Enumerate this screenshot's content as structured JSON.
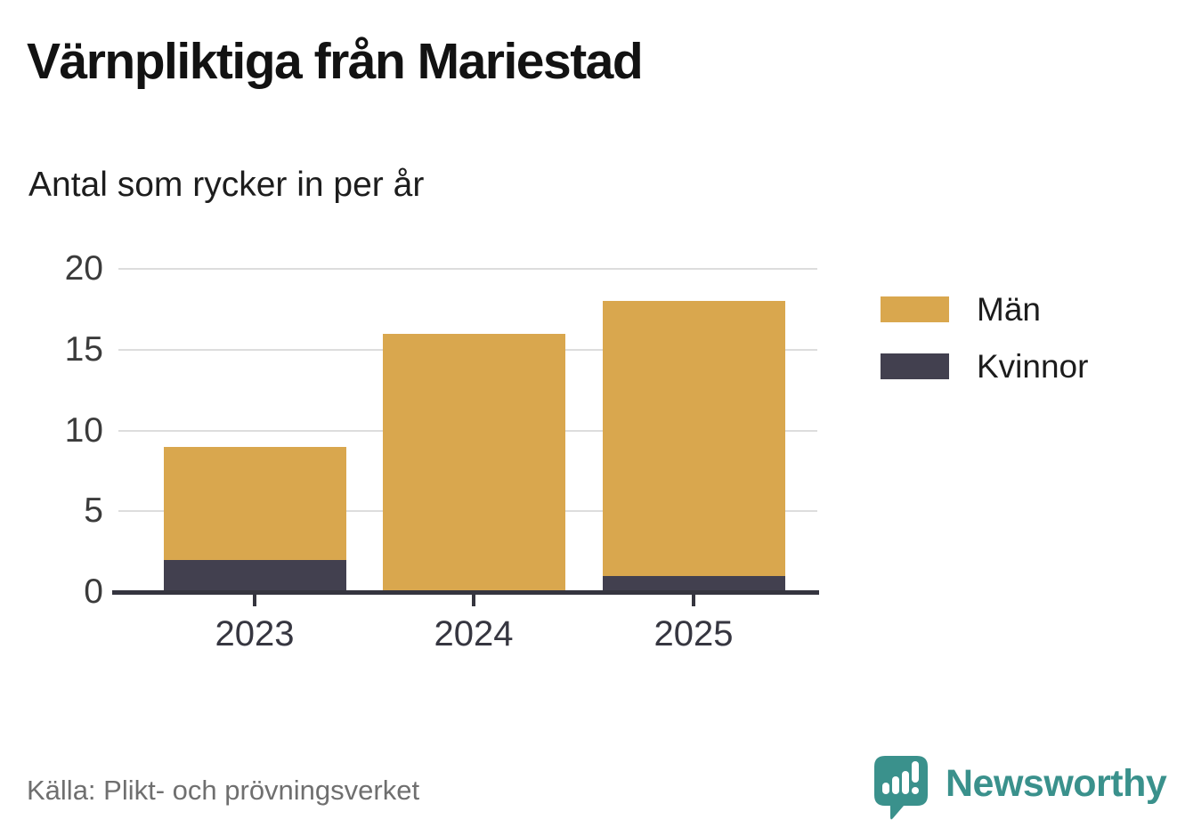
{
  "header": {
    "title": "Värnpliktiga från Mariestad",
    "subtitle": "Antal som rycker in per år"
  },
  "chart_data": {
    "type": "bar",
    "stacked": true,
    "title": "Värnpliktiga från Mariestad",
    "subtitle": "Antal som rycker in per år",
    "categories": [
      "2023",
      "2024",
      "2025"
    ],
    "series": [
      {
        "name": "Kvinnor",
        "color": "#42404f",
        "values": [
          2,
          0,
          1
        ]
      },
      {
        "name": "Män",
        "color": "#d9a74e",
        "values": [
          7,
          16,
          17
        ]
      }
    ],
    "totals": [
      9,
      16,
      18
    ],
    "xlabel": "",
    "ylabel": "",
    "ylim": [
      0,
      20
    ],
    "yticks": [
      0,
      5,
      10,
      15,
      20
    ],
    "grid": "horizontal",
    "legend_position": "right"
  },
  "legend": {
    "items": [
      {
        "label": "Män",
        "color": "#d9a74e"
      },
      {
        "label": "Kvinnor",
        "color": "#42404f"
      }
    ]
  },
  "footer": {
    "source": "Källa: Plikt- och prövningsverket",
    "brand": "Newsworthy"
  },
  "colors": {
    "men": "#d9a74e",
    "women": "#42404f",
    "axis": "#35353f",
    "gridline": "#dddddd",
    "tick_label": "#3b3b3b",
    "source_text": "#6f6f6f",
    "brand_teal": "#3a918c",
    "background": "#ffffff"
  }
}
